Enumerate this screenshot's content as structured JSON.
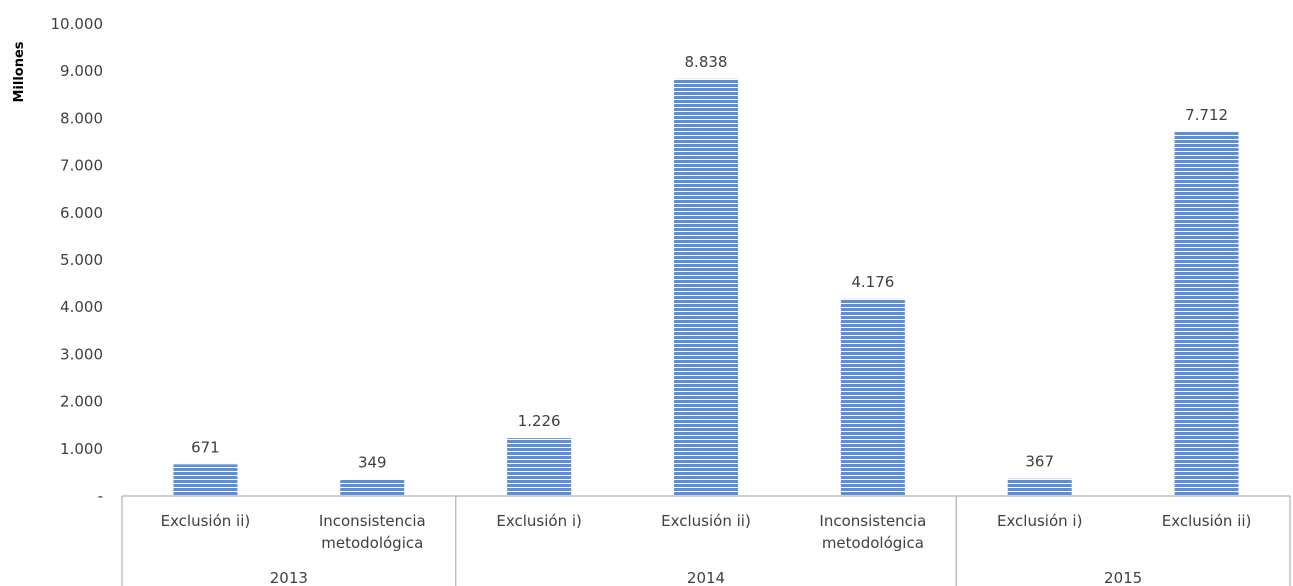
{
  "chart_data": {
    "type": "bar",
    "ylabel": "Millones",
    "ylim": [
      0,
      10000
    ],
    "yticks": [
      0,
      1000,
      2000,
      3000,
      4000,
      5000,
      6000,
      7000,
      8000,
      9000,
      10000
    ],
    "ytick_labels": [
      "-",
      "1.000",
      "2.000",
      "3.000",
      "4.000",
      "5.000",
      "6.000",
      "7.000",
      "8.000",
      "9.000",
      "10.000"
    ],
    "groups": [
      {
        "label": "2013",
        "categories": [
          {
            "label": [
              "Exclusión ii)"
            ],
            "value": 671,
            "value_label": "671"
          },
          {
            "label": [
              "Inconsistencia",
              "metodológica"
            ],
            "value": 349,
            "value_label": "349"
          }
        ]
      },
      {
        "label": "2014",
        "categories": [
          {
            "label": [
              "Exclusión i)"
            ],
            "value": 1226,
            "value_label": "1.226"
          },
          {
            "label": [
              "Exclusión ii)"
            ],
            "value": 8838,
            "value_label": "8.838"
          },
          {
            "label": [
              "Inconsistencia",
              "metodológica"
            ],
            "value": 4176,
            "value_label": "4.176"
          }
        ]
      },
      {
        "label": "2015",
        "categories": [
          {
            "label": [
              "Exclusión i)"
            ],
            "value": 367,
            "value_label": "367"
          },
          {
            "label": [
              "Exclusión ii)"
            ],
            "value": 7712,
            "value_label": "7.712"
          }
        ]
      }
    ],
    "bar_color": "#5b8fd6",
    "stripe_color": "#ffffff",
    "axis_color": "#bfbfbf",
    "grid": false,
    "legend": "none"
  }
}
